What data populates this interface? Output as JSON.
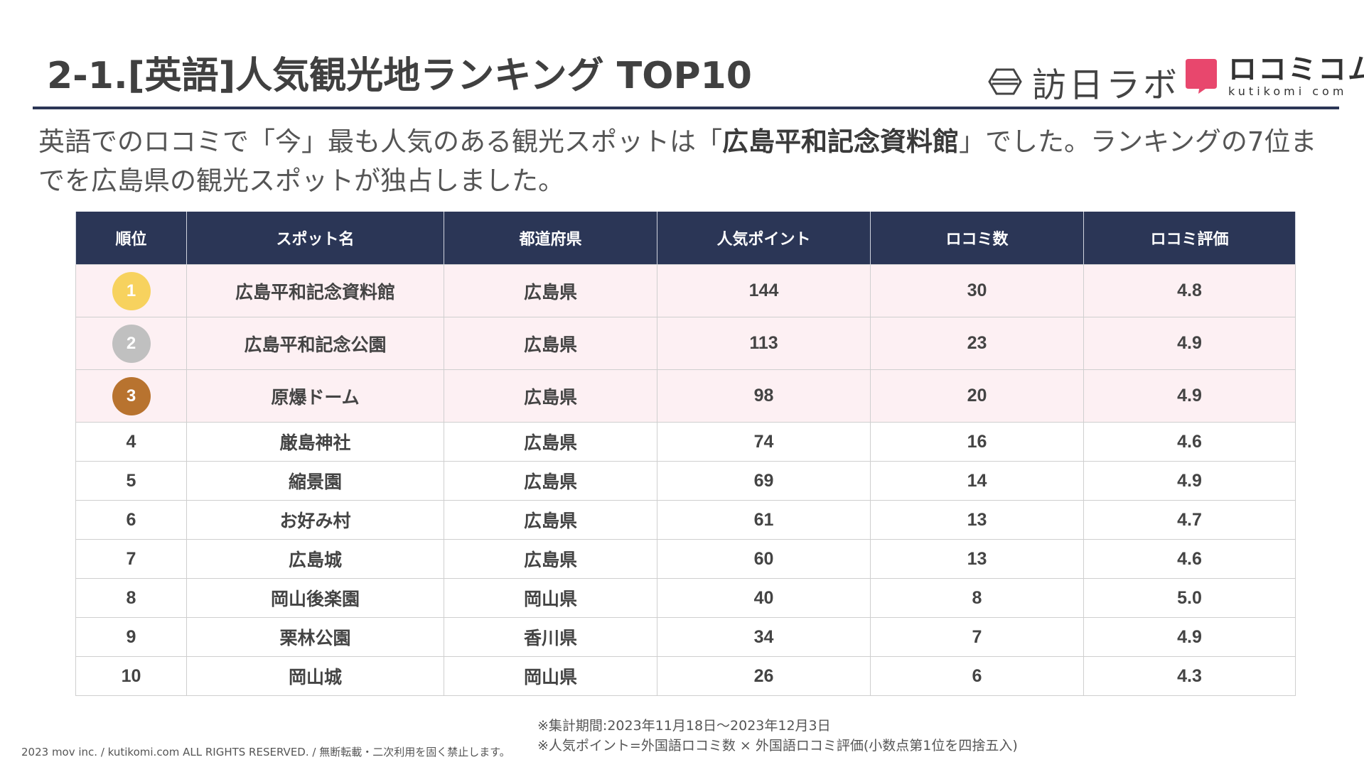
{
  "header": {
    "title": "2-1.[英語]人気観光地ランキング TOP10",
    "logo_houjin_text": "訪日ラボ",
    "logo_kuchikomi_jp": "ロコミコム",
    "logo_kuchikomi_en": "kutikomi com"
  },
  "lead": {
    "part1": "英語でのロコミで「今」最も人気のある観光スポットは「",
    "highlight": "広島平和記念資料館",
    "part2": "」でした。ランキングの7位までを広島県の観光スポットが独占しました。"
  },
  "table": {
    "columns": [
      "順位",
      "スポット名",
      "都道府県",
      "人気ポイント",
      "ロコミ数",
      "ロコミ評価"
    ],
    "rows": [
      {
        "rank": "1",
        "spot": "広島平和記念資料館",
        "prefecture": "広島県",
        "points": "144",
        "reviews": "30",
        "rating": "4.8"
      },
      {
        "rank": "2",
        "spot": "広島平和記念公園",
        "prefecture": "広島県",
        "points": "113",
        "reviews": "23",
        "rating": "4.9"
      },
      {
        "rank": "3",
        "spot": "原爆ドーム",
        "prefecture": "広島県",
        "points": "98",
        "reviews": "20",
        "rating": "4.9"
      },
      {
        "rank": "4",
        "spot": "厳島神社",
        "prefecture": "広島県",
        "points": "74",
        "reviews": "16",
        "rating": "4.6"
      },
      {
        "rank": "5",
        "spot": "縮景園",
        "prefecture": "広島県",
        "points": "69",
        "reviews": "14",
        "rating": "4.9"
      },
      {
        "rank": "6",
        "spot": "お好み村",
        "prefecture": "広島県",
        "points": "61",
        "reviews": "13",
        "rating": "4.7"
      },
      {
        "rank": "7",
        "spot": "広島城",
        "prefecture": "広島県",
        "points": "60",
        "reviews": "13",
        "rating": "4.6"
      },
      {
        "rank": "8",
        "spot": "岡山後楽園",
        "prefecture": "岡山県",
        "points": "40",
        "reviews": "8",
        "rating": "5.0"
      },
      {
        "rank": "9",
        "spot": "栗林公園",
        "prefecture": "香川県",
        "points": "34",
        "reviews": "7",
        "rating": "4.9"
      },
      {
        "rank": "10",
        "spot": "岡山城",
        "prefecture": "岡山県",
        "points": "26",
        "reviews": "6",
        "rating": "4.3"
      }
    ]
  },
  "colors": {
    "header_bg": "#2b3656",
    "top_row_bg": "#fdf0f3",
    "medal_gold": "#f7d25e",
    "medal_silver": "#c0c0c0",
    "medal_bronze": "#b8732f",
    "kuchikomi_pink": "#e8476d"
  },
  "footer": {
    "note1": "※集計期間:2023年11月18日〜2023年12月3日",
    "note2": "※人気ポイント=外国語ロコミ数 × 外国語ロコミ評価(小数点第1位を四捨五入)",
    "copyright": "2023 mov inc. / kutikomi.com ALL RIGHTS RESERVED. / 無断転載・二次利用を固く禁止します。"
  }
}
